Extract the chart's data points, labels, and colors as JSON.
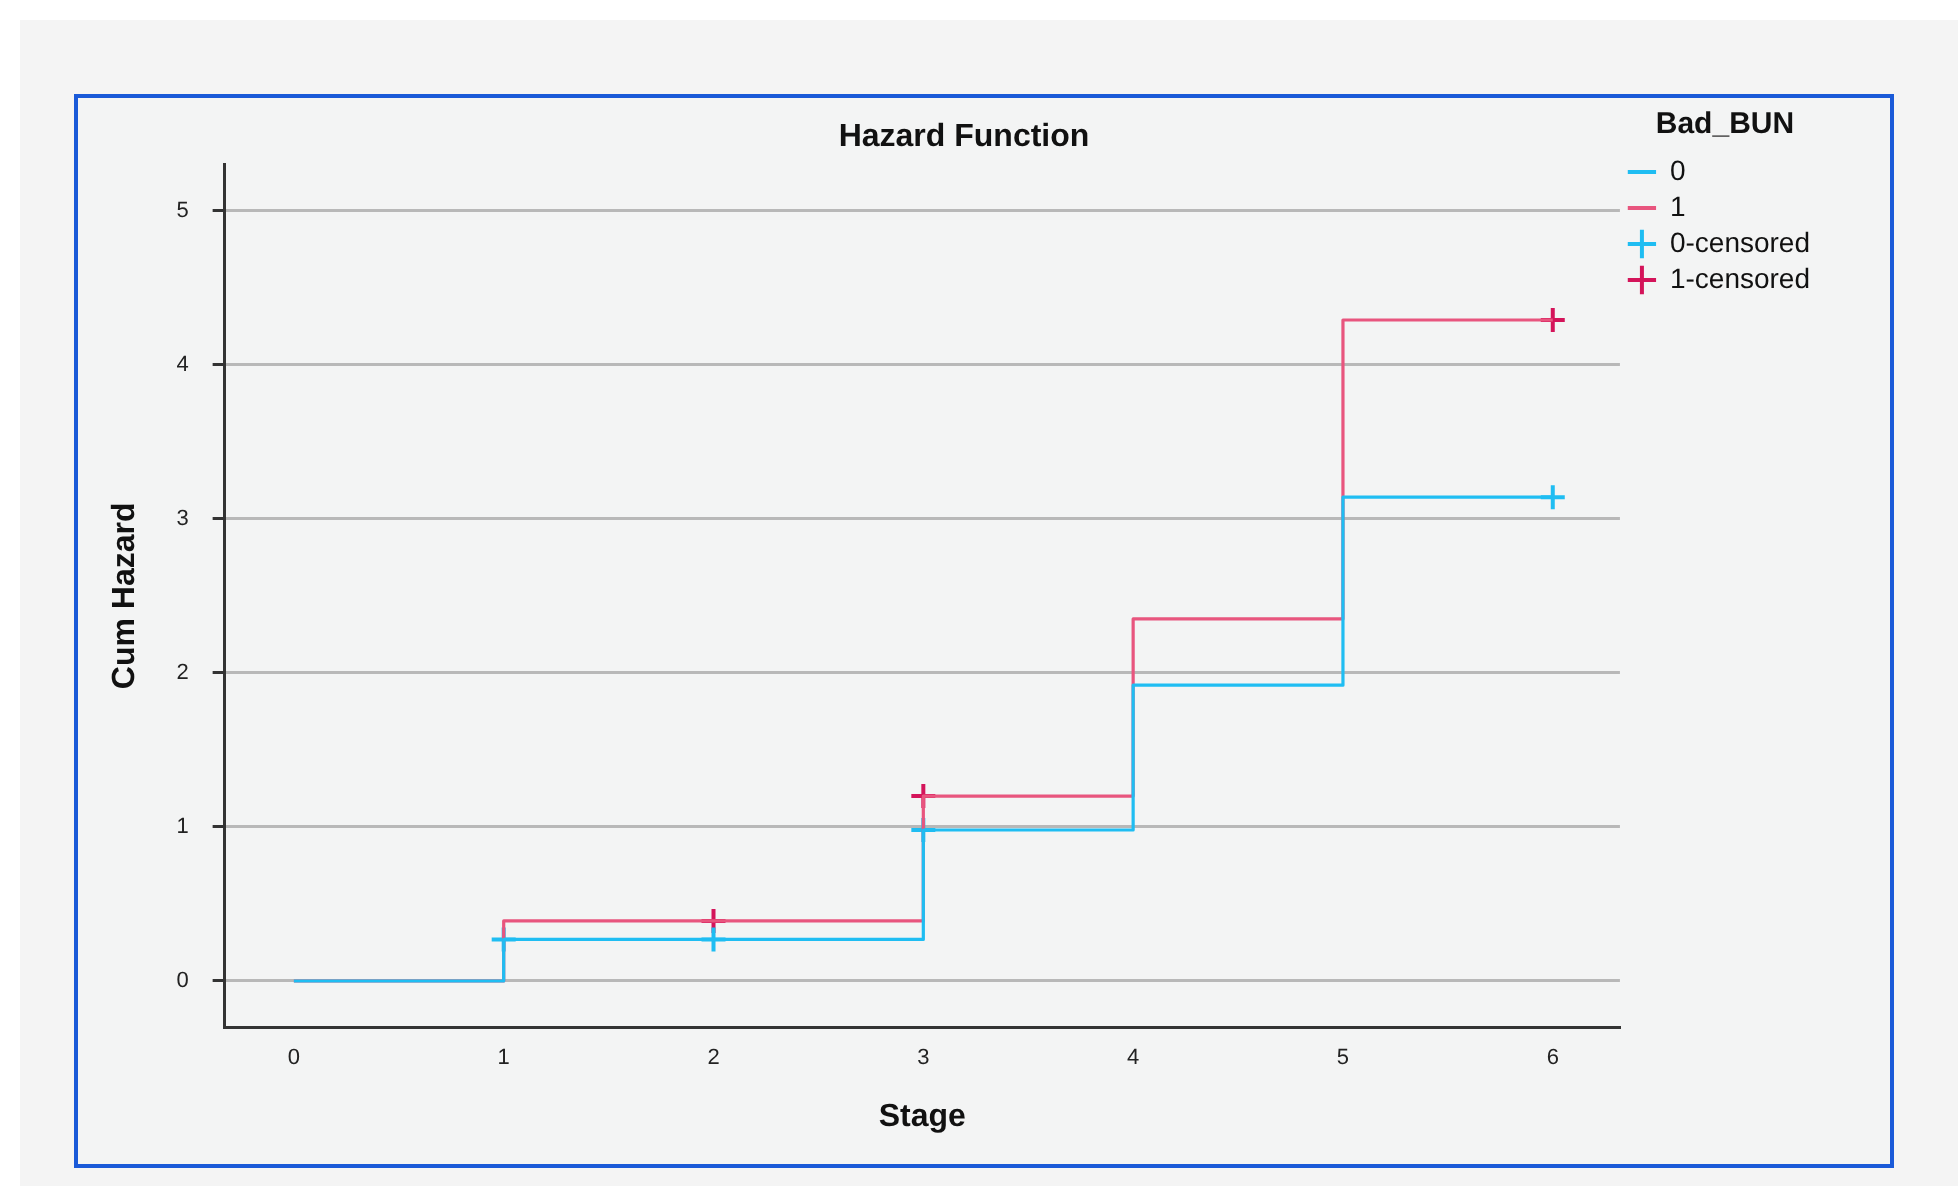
{
  "chart_data": {
    "type": "step",
    "title": "Hazard Function",
    "xlabel": "Stage",
    "ylabel": "Cum Hazard",
    "legend_title": "Bad_BUN",
    "x": [
      0,
      1,
      2,
      3,
      4,
      5,
      6
    ],
    "series": [
      {
        "name": "0",
        "color": "#1fbdf2",
        "marker": "none",
        "values": [
          0,
          0.27,
          0.27,
          0.98,
          1.92,
          3.14,
          3.14
        ]
      },
      {
        "name": "1",
        "color": "#e8557e",
        "marker": "none",
        "values": [
          0,
          0.39,
          0.39,
          1.2,
          2.35,
          4.29,
          4.29
        ]
      },
      {
        "name": "0-censored",
        "type": "scatter",
        "color": "#1fbdf2",
        "marker": "cross",
        "x": [
          1,
          2,
          3,
          6
        ],
        "values": [
          0.27,
          0.27,
          0.98,
          3.14
        ]
      },
      {
        "name": "1-censored",
        "type": "scatter",
        "color": "#d4145a",
        "marker": "cross",
        "x": [
          2,
          3,
          6
        ],
        "values": [
          0.39,
          1.2,
          4.29
        ]
      }
    ],
    "xlim": [
      -0.33,
      6.32
    ],
    "xticks": [
      0,
      1,
      2,
      3,
      4,
      5,
      6
    ],
    "ylim": [
      -0.3,
      5.3
    ],
    "yticks": [
      0,
      1,
      2,
      3,
      4,
      5
    ],
    "grid": "y",
    "legend": "top right"
  }
}
